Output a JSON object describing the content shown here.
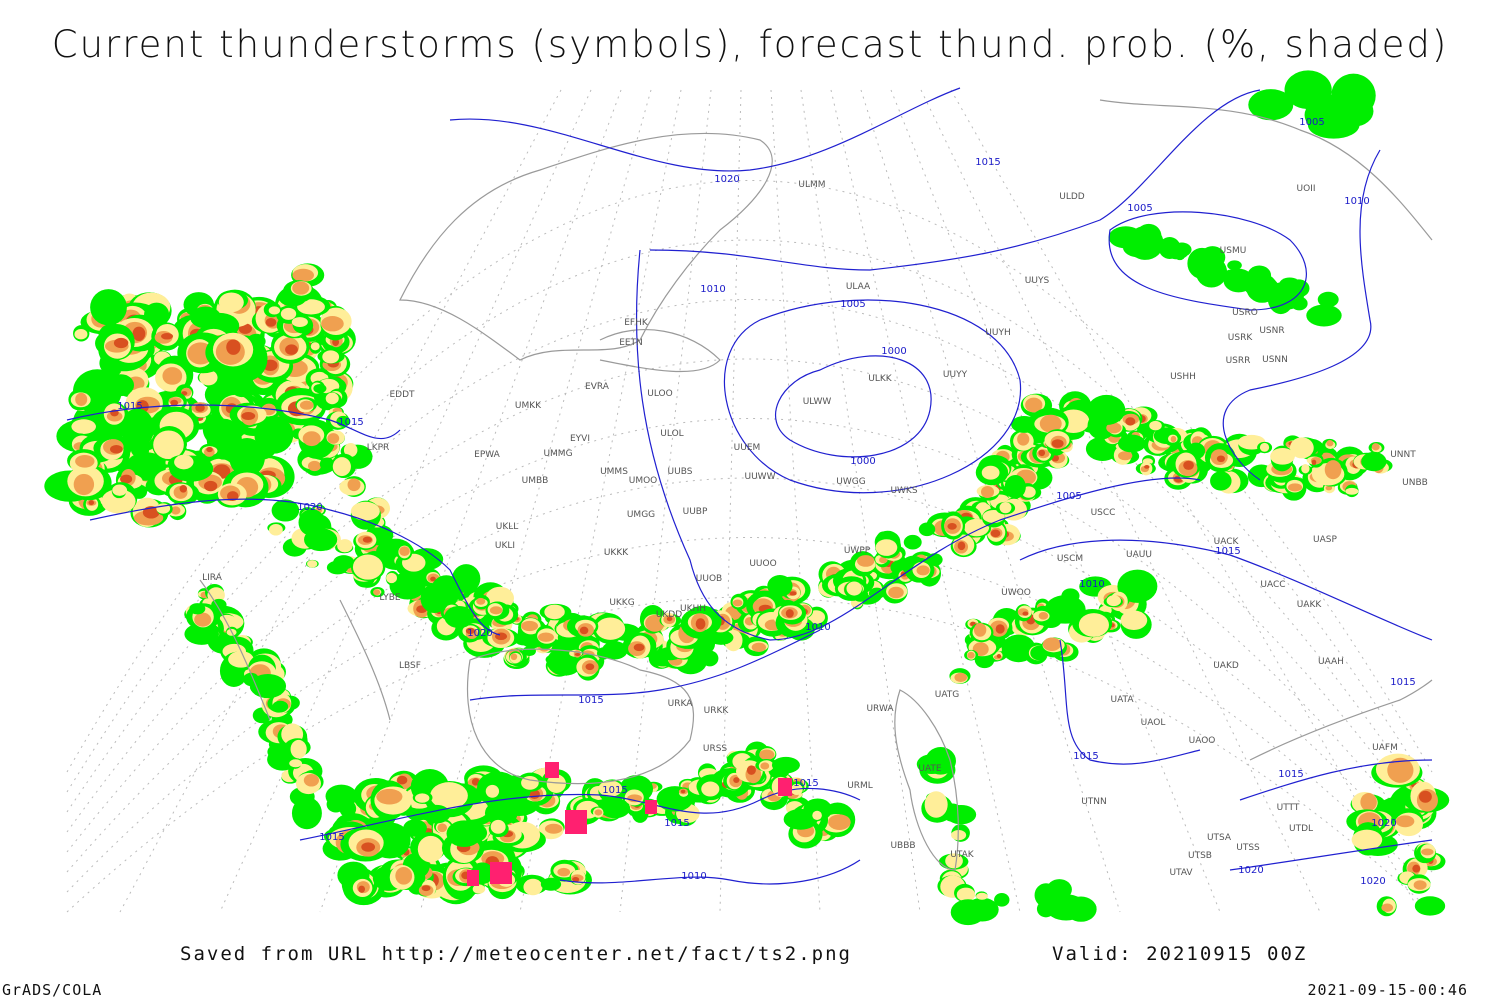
{
  "title": "Current thunderstorms (symbols), forecast thund. prob. (%, shaded)",
  "footer": {
    "saved": "Saved from URL http://meteocenter.net/fact/ts2.png",
    "valid": "Valid: 20210915 00Z",
    "software": "GrADS/COLA",
    "timestamp": "2021-09-15-00:46"
  },
  "stations": [
    "ULMM",
    "ULDD",
    "UUYS",
    "ULAA",
    "EFHK",
    "EETN",
    "UUYH",
    "USMU",
    "USRO",
    "USRK",
    "USNR",
    "USRR",
    "USNN",
    "USHH",
    "ULKK",
    "UUYY",
    "ULWW",
    "EVRA",
    "ULOO",
    "UMKK",
    "EDDT",
    "ULOL",
    "UUEM",
    "EYVI",
    "UMMG",
    "EPWA",
    "UMMS",
    "UMOO",
    "UUBS",
    "UUWW",
    "UWGG",
    "UWKS",
    "UMBB",
    "UMGG",
    "UUBP",
    "UKLL",
    "UKLI",
    "UUOO",
    "UWPP",
    "UKKK",
    "UUOB",
    "UKHH",
    "UKKG",
    "UKDD",
    "USCM",
    "UAUU",
    "UACK",
    "UASP",
    "USCC",
    "UACC",
    "UAKK",
    "UWOO",
    "UAKD",
    "UAAH",
    "UATA",
    "UATG",
    "UAOL",
    "UAOO",
    "URWA",
    "URKA",
    "URKK",
    "URSS",
    "UATE",
    "URML",
    "UTNN",
    "UBBB",
    "UTAK",
    "UTSS",
    "UTSB",
    "UTAV",
    "UTSA",
    "UTTT",
    "UTDL",
    "UAFM",
    "UNNT",
    "UNBB",
    "LKPR",
    "LIRA",
    "LBSF",
    "LYBE",
    "UOII"
  ],
  "isobar_labels": [
    1005,
    1015,
    1020,
    1005,
    1010,
    1010,
    1005,
    1000,
    1000,
    1015,
    1015,
    1020,
    1005,
    1015,
    1010,
    1010,
    1020,
    1015,
    1015,
    1015,
    1015,
    1015,
    1015,
    1015,
    1015,
    1010,
    1020,
    1020,
    1020
  ]
}
